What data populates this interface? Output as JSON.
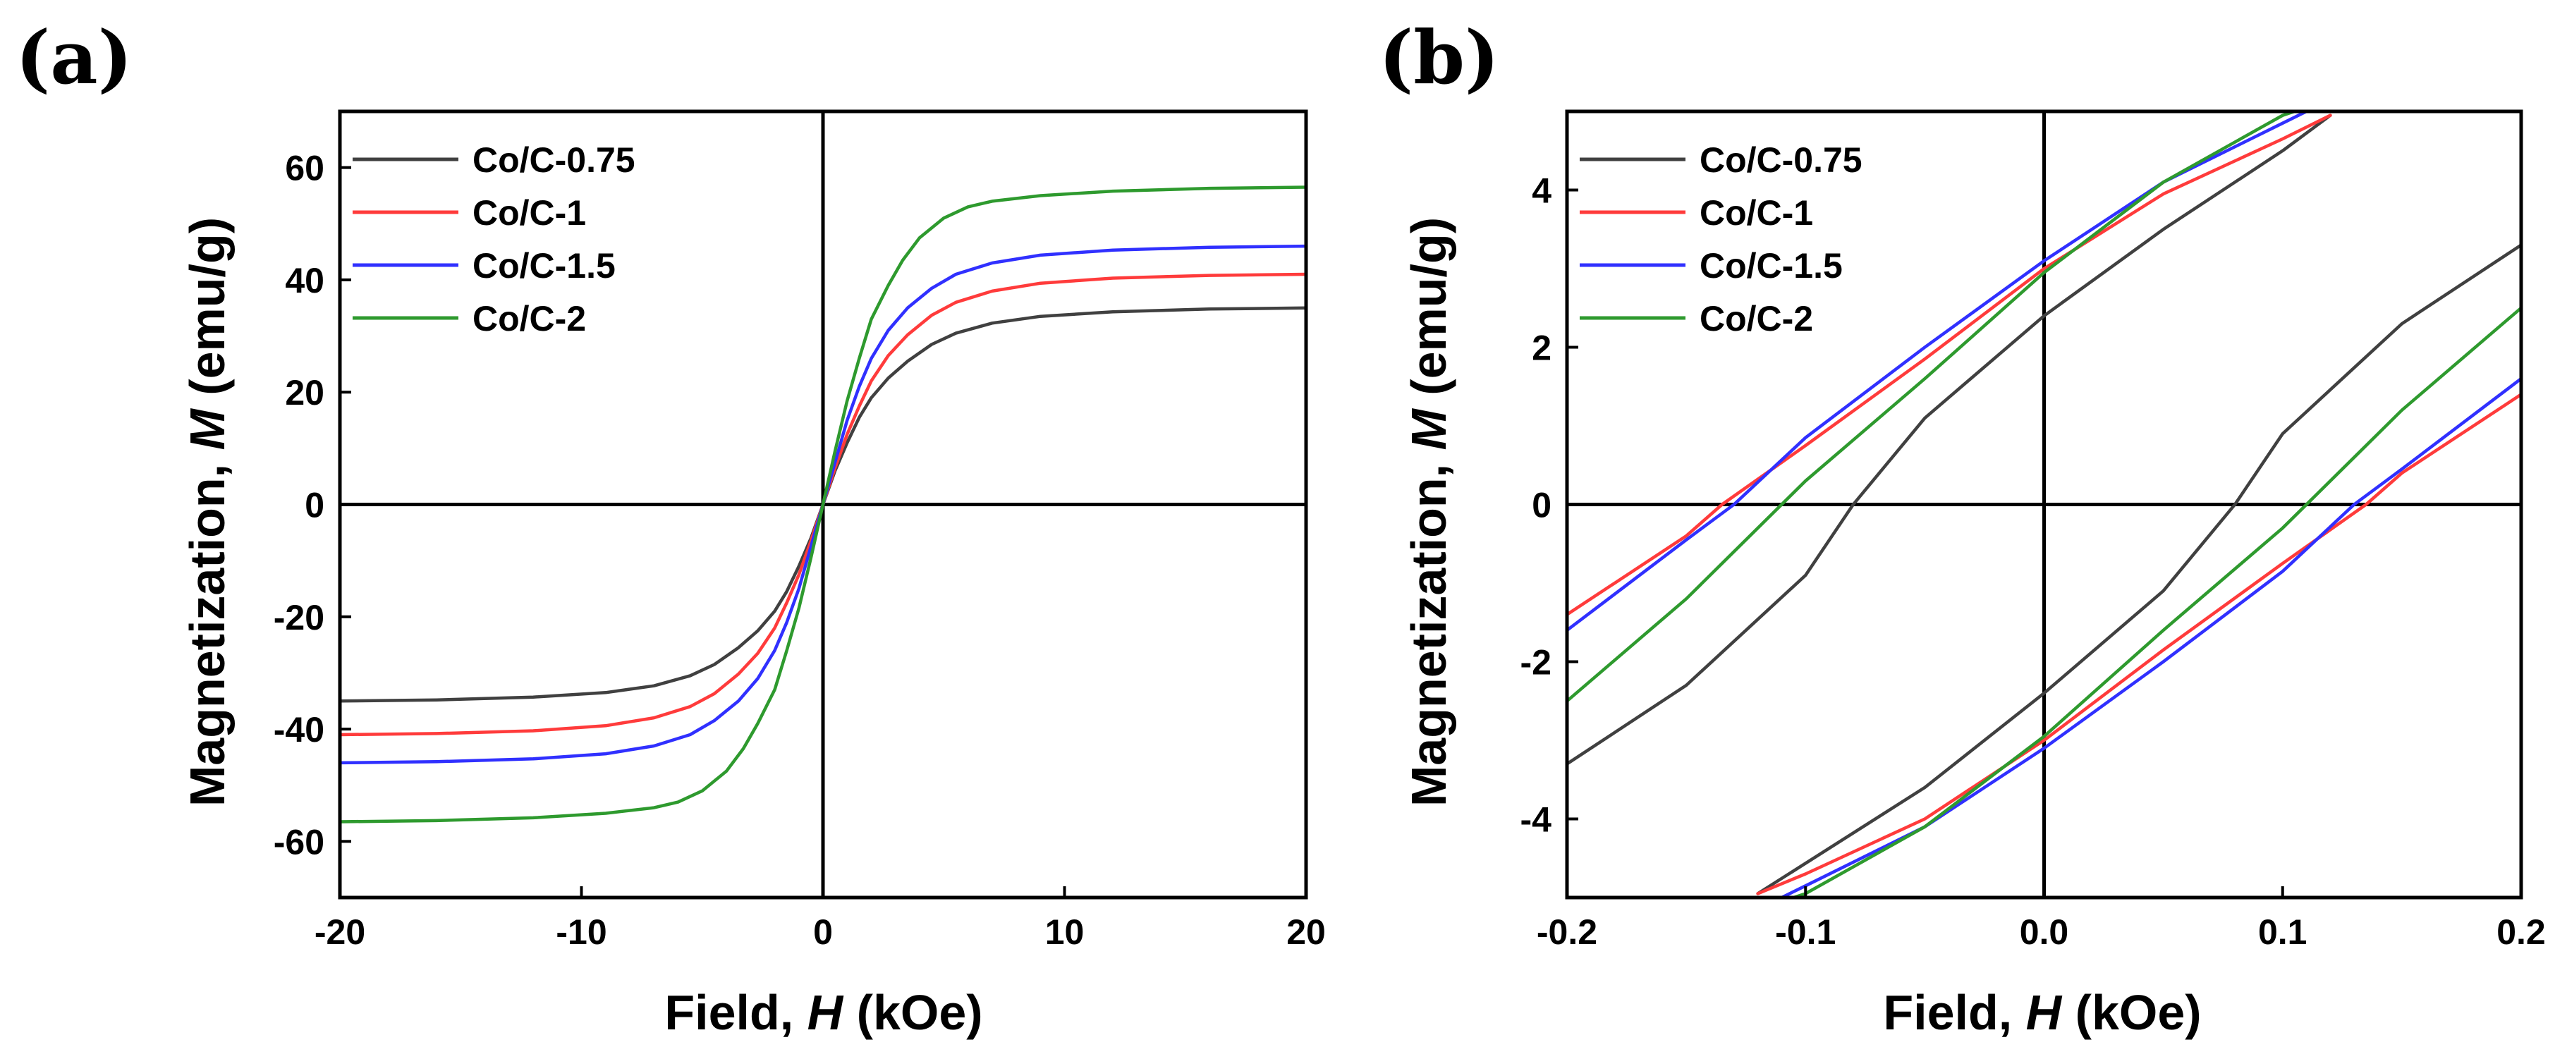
{
  "chart_data": [
    {
      "id": "a",
      "panel_label": "(a)",
      "type": "line",
      "xlabel_prefix": "Field, ",
      "xlabel_var": "H",
      "xlabel_suffix": " (kOe)",
      "ylabel_prefix": "Magnetization, ",
      "ylabel_var": "M",
      "ylabel_suffix": " (emu/g)",
      "xlim": [
        -20,
        20
      ],
      "ylim": [
        -70,
        70
      ],
      "xticks": [
        -20,
        -10,
        0,
        10,
        20
      ],
      "xtick_labels": [
        "-20",
        "-10",
        "0",
        "10",
        "20"
      ],
      "yticks": [
        -60,
        -40,
        -20,
        0,
        20,
        40,
        60
      ],
      "ytick_labels": [
        "-60",
        "-40",
        "-20",
        "0",
        "20",
        "40",
        "60"
      ],
      "legend_position": "top-left",
      "series": [
        {
          "name": "Co/C-0.75",
          "color": "#404040",
          "x": [
            -20,
            -16,
            -12,
            -9,
            -7,
            -5.5,
            -4.5,
            -3.5,
            -2.7,
            -2,
            -1.5,
            -1,
            -0.5,
            0,
            0.5,
            1,
            1.5,
            2,
            2.7,
            3.5,
            4.5,
            5.5,
            7,
            9,
            12,
            16,
            20
          ],
          "y": [
            -35,
            -34.8,
            -34.3,
            -33.5,
            -32.3,
            -30.5,
            -28.5,
            -25.5,
            -22.5,
            -19,
            -15.5,
            -11,
            -6,
            0,
            6,
            11,
            15.5,
            19,
            22.5,
            25.5,
            28.5,
            30.5,
            32.3,
            33.5,
            34.3,
            34.8,
            35
          ]
        },
        {
          "name": "Co/C-1",
          "color": "#ff3b3b",
          "x": [
            -20,
            -16,
            -12,
            -9,
            -7,
            -5.5,
            -4.5,
            -3.5,
            -2.7,
            -2,
            -1.5,
            -1,
            -0.5,
            0,
            0.5,
            1,
            1.5,
            2,
            2.7,
            3.5,
            4.5,
            5.5,
            7,
            9,
            12,
            16,
            20
          ],
          "y": [
            -41,
            -40.8,
            -40.3,
            -39.4,
            -38,
            -36,
            -33.7,
            -30.2,
            -26.5,
            -22,
            -17.5,
            -12.5,
            -6.5,
            0,
            6.5,
            12.5,
            17.5,
            22,
            26.5,
            30.2,
            33.7,
            36,
            38,
            39.4,
            40.3,
            40.8,
            41
          ]
        },
        {
          "name": "Co/C-1.5",
          "color": "#3030ff",
          "x": [
            -20,
            -16,
            -12,
            -9,
            -7,
            -5.5,
            -4.5,
            -3.5,
            -2.7,
            -2,
            -1.5,
            -1,
            -0.5,
            0,
            0.5,
            1,
            1.5,
            2,
            2.7,
            3.5,
            4.5,
            5.5,
            7,
            9,
            12,
            16,
            20
          ],
          "y": [
            -46,
            -45.8,
            -45.3,
            -44.4,
            -43,
            -41,
            -38.5,
            -35,
            -31,
            -26,
            -21,
            -15,
            -7.5,
            0,
            7.5,
            15,
            21,
            26,
            31,
            35,
            38.5,
            41,
            43,
            44.4,
            45.3,
            45.8,
            46
          ]
        },
        {
          "name": "Co/C-2",
          "color": "#2e9a2e",
          "x": [
            -20,
            -16,
            -12,
            -9,
            -7,
            -6,
            -5,
            -4,
            -3.3,
            -2.7,
            -2,
            -1.5,
            -1,
            -0.5,
            0,
            0.5,
            1,
            1.5,
            2,
            2.7,
            3.3,
            4,
            5,
            6,
            7,
            9,
            12,
            16,
            20
          ],
          "y": [
            -56.5,
            -56.3,
            -55.8,
            -55,
            -54,
            -53,
            -51,
            -47.5,
            -43.5,
            -39,
            -33,
            -26,
            -18.5,
            -9.5,
            0,
            9.5,
            18.5,
            26,
            33,
            39,
            43.5,
            47.5,
            51,
            53,
            54,
            55,
            55.8,
            56.3,
            56.5
          ]
        }
      ]
    },
    {
      "id": "b",
      "panel_label": "(b)",
      "type": "line",
      "xlabel_prefix": "Field, ",
      "xlabel_var": "H",
      "xlabel_suffix": " (kOe)",
      "ylabel_prefix": "Magnetization, ",
      "ylabel_var": "M",
      "ylabel_suffix": " (emu/g)",
      "xlim": [
        -0.2,
        0.2
      ],
      "ylim": [
        -5,
        5
      ],
      "xticks": [
        -0.2,
        -0.1,
        0,
        0.1,
        0.2
      ],
      "xtick_labels": [
        "-0.2",
        "-0.1",
        "0.0",
        "0.1",
        "0.2"
      ],
      "yticks": [
        -4,
        -2,
        0,
        2,
        4
      ],
      "ytick_labels": [
        "-4",
        "-2",
        "0",
        "2",
        "4"
      ],
      "legend_position": "top-left",
      "series": [
        {
          "name": "Co/C-0.75",
          "color": "#404040",
          "x": [
            -0.2,
            -0.15,
            -0.1,
            -0.08,
            -0.05,
            0,
            0.05,
            0.1,
            0.12,
            null,
            -0.12,
            -0.05,
            0,
            0.05,
            0.08,
            0.1,
            0.15,
            0.2
          ],
          "y": [
            -3.3,
            -2.3,
            -0.9,
            0,
            1.1,
            2.4,
            3.5,
            4.5,
            4.95,
            null,
            -4.95,
            -3.6,
            -2.4,
            -1.1,
            0,
            0.9,
            2.3,
            3.3
          ]
        },
        {
          "name": "Co/C-1",
          "color": "#ff3b3b",
          "x": [
            -0.2,
            -0.15,
            -0.135,
            -0.1,
            -0.05,
            0,
            0.05,
            0.1,
            0.12,
            null,
            -0.12,
            -0.1,
            -0.05,
            0,
            0.05,
            0.1,
            0.135,
            0.15,
            0.2
          ],
          "y": [
            -1.4,
            -0.4,
            0,
            0.75,
            1.85,
            3,
            3.95,
            4.65,
            4.95,
            null,
            -4.95,
            -4.7,
            -4,
            -3,
            -1.85,
            -0.75,
            0,
            0.4,
            1.4
          ]
        },
        {
          "name": "Co/C-1.5",
          "color": "#3030ff",
          "x": [
            -0.2,
            -0.15,
            -0.13,
            -0.1,
            -0.05,
            0,
            0.05,
            0.1,
            0.11,
            null,
            -0.11,
            -0.1,
            -0.05,
            0,
            0.05,
            0.1,
            0.13,
            0.15,
            0.2
          ],
          "y": [
            -1.6,
            -0.45,
            0,
            0.85,
            2,
            3.1,
            4.1,
            4.85,
            5,
            null,
            -5,
            -4.85,
            -4.1,
            -3.1,
            -2,
            -0.85,
            0,
            0.45,
            1.6
          ]
        },
        {
          "name": "Co/C-2",
          "color": "#2e9a2e",
          "x": [
            -0.2,
            -0.15,
            -0.11,
            -0.1,
            -0.05,
            0,
            0.05,
            0.1,
            0.105,
            null,
            -0.105,
            -0.1,
            -0.05,
            0,
            0.05,
            0.1,
            0.11,
            0.15,
            0.2
          ],
          "y": [
            -2.5,
            -1.2,
            0,
            0.3,
            1.6,
            2.95,
            4.1,
            4.95,
            5,
            null,
            -5,
            -4.95,
            -4.1,
            -2.95,
            -1.6,
            -0.3,
            0,
            1.2,
            2.5
          ]
        }
      ]
    }
  ]
}
